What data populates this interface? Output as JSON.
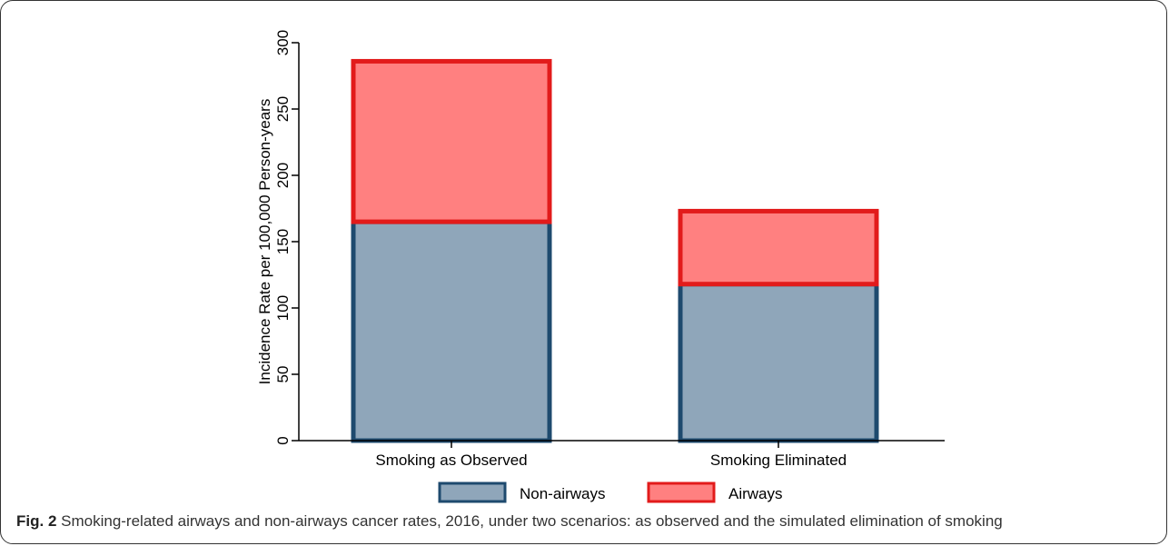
{
  "chart_data": {
    "type": "bar",
    "stacked": true,
    "categories": [
      "Smoking as Observed",
      "Smoking Eliminated"
    ],
    "series": [
      {
        "name": "Non-airways",
        "values": [
          165,
          118
        ],
        "fill": "#8fa6ba",
        "stroke": "#1e4a6e"
      },
      {
        "name": "Airways",
        "values": [
          121,
          55
        ],
        "fill": "#ff8080",
        "stroke": "#e21b1b"
      }
    ],
    "title": "",
    "xlabel": "",
    "ylabel": "Incidence Rate per 100,000 Person-years",
    "ylim": [
      0,
      300
    ],
    "yticks": [
      0,
      50,
      100,
      150,
      200,
      250,
      300
    ],
    "grid": false,
    "legend_position": "bottom"
  },
  "caption": {
    "label": "Fig. 2",
    "text": " Smoking-related airways and non-airways cancer rates, 2016, under two scenarios: as observed and the simulated elimination of smoking"
  }
}
